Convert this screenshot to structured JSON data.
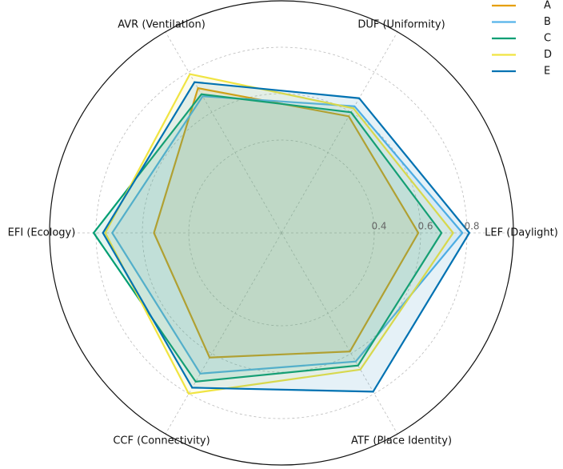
{
  "chart_data": {
    "type": "radar",
    "categories": [
      "LEF (Daylight)",
      "DUF (Uniformity)",
      "AVR (Ventilation)",
      "EFI (Ecology)",
      "CCF (Connectivity)",
      "ATF (Place Identity)"
    ],
    "rlim": [
      0,
      1
    ],
    "rticks": [
      0.4,
      0.6,
      0.8
    ],
    "grid": true,
    "legend": "upper-right",
    "series": [
      {
        "name": "A",
        "color": "#E69F00",
        "values": [
          0.59,
          0.58,
          0.72,
          0.55,
          0.62,
          0.59
        ]
      },
      {
        "name": "B",
        "color": "#56B4E9",
        "values": [
          0.78,
          0.63,
          0.68,
          0.73,
          0.7,
          0.64
        ]
      },
      {
        "name": "C",
        "color": "#009E73",
        "values": [
          0.69,
          0.6,
          0.69,
          0.81,
          0.74,
          0.66
        ]
      },
      {
        "name": "D",
        "color": "#F0E442",
        "values": [
          0.74,
          0.62,
          0.79,
          0.76,
          0.8,
          0.68
        ]
      },
      {
        "name": "E",
        "color": "#0072B2",
        "values": [
          0.81,
          0.67,
          0.75,
          0.77,
          0.77,
          0.79
        ]
      }
    ]
  }
}
